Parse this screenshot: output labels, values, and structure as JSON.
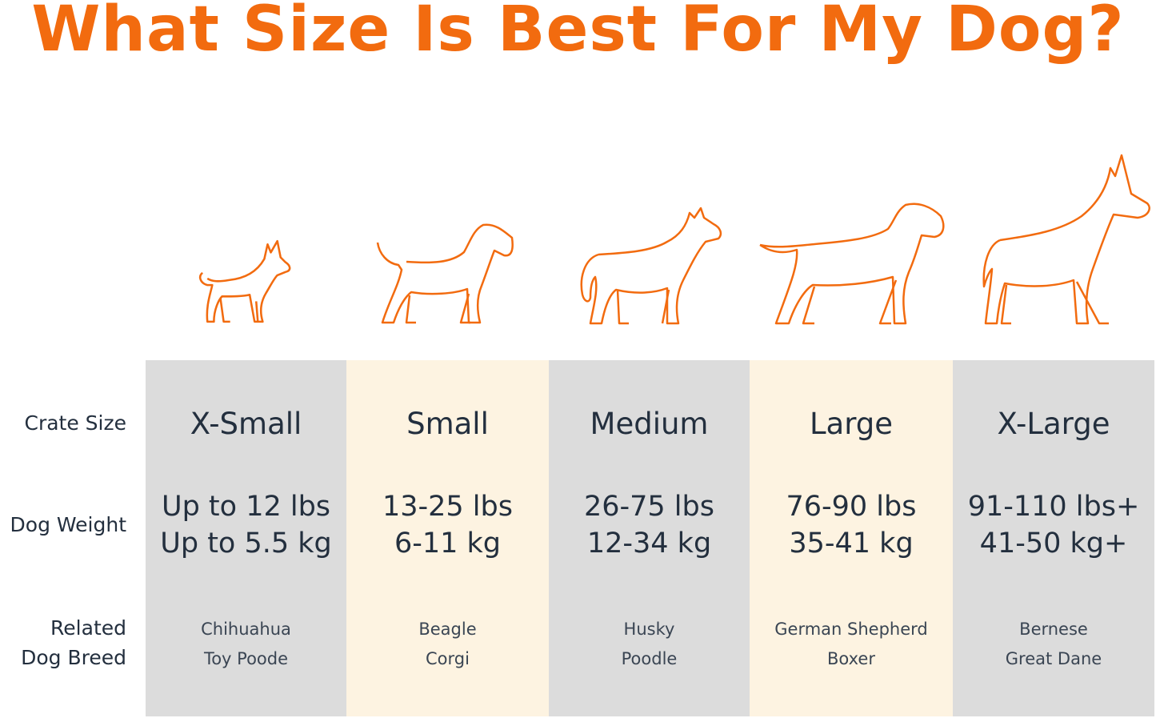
{
  "title": "What Size Is Best For My Dog?",
  "colors": {
    "accent": "#f26b0f",
    "gray_column": "#dcdcdc",
    "cream_column": "#fdf3e1",
    "text": "#232f3e"
  },
  "row_labels": {
    "crate_size": "Crate Size",
    "dog_weight": "Dog Weight",
    "related_breed_line1": "Related",
    "related_breed_line2": "Dog Breed"
  },
  "columns": [
    {
      "size": "X-Small",
      "weight_lbs": "Up to 12 lbs",
      "weight_kg": "Up to 5.5 kg",
      "breed1": "Chihuahua",
      "breed2": "Toy Poode",
      "icon": "chihuahua-icon"
    },
    {
      "size": "Small",
      "weight_lbs": "13-25 lbs",
      "weight_kg": "6-11 kg",
      "breed1": "Beagle",
      "breed2": "Corgi",
      "icon": "beagle-icon"
    },
    {
      "size": "Medium",
      "weight_lbs": "26-75 lbs",
      "weight_kg": "12-34 kg",
      "breed1": "Husky",
      "breed2": "Poodle",
      "icon": "husky-icon"
    },
    {
      "size": "Large",
      "weight_lbs": "76-90 lbs",
      "weight_kg": "35-41 kg",
      "breed1": "German Shepherd",
      "breed2": "Boxer",
      "icon": "retriever-icon"
    },
    {
      "size": "X-Large",
      "weight_lbs": "91-110 lbs+",
      "weight_kg": "41-50 kg+",
      "breed1": "Bernese",
      "breed2": "Great Dane",
      "icon": "great-dane-icon"
    }
  ]
}
